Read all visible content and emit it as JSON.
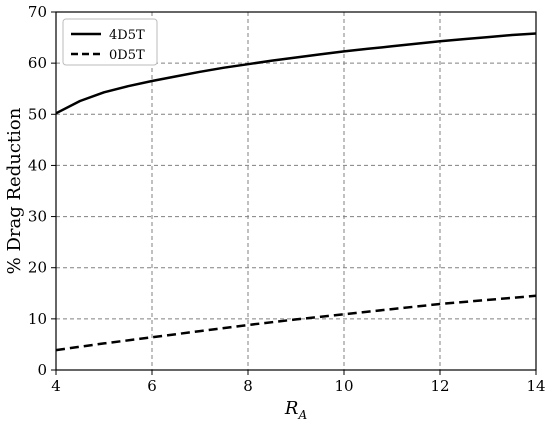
{
  "chart_data": {
    "type": "line",
    "title": "",
    "xlabel": "R",
    "xlabel_subscript": "A",
    "ylabel": "% Drag Reduction",
    "xlim": [
      4,
      14
    ],
    "ylim": [
      0,
      70
    ],
    "xticks": [
      4,
      6,
      8,
      10,
      12,
      14
    ],
    "yticks": [
      0,
      10,
      20,
      30,
      40,
      50,
      60,
      70
    ],
    "grid": true,
    "legend_position": "top-left",
    "series": [
      {
        "name": "4D5T",
        "style": "solid",
        "color": "#000000",
        "x": [
          4,
          4.5,
          5,
          5.5,
          6,
          6.5,
          7,
          7.5,
          8,
          8.5,
          9,
          9.5,
          10,
          10.5,
          11,
          11.5,
          12,
          12.5,
          13,
          13.5,
          14
        ],
        "y": [
          50.2,
          52.6,
          54.3,
          55.5,
          56.5,
          57.4,
          58.3,
          59.1,
          59.8,
          60.5,
          61.1,
          61.7,
          62.3,
          62.8,
          63.3,
          63.8,
          64.3,
          64.7,
          65.1,
          65.5,
          65.8
        ]
      },
      {
        "name": "0D5T",
        "style": "dashed",
        "color": "#000000",
        "x": [
          4,
          5,
          6,
          7,
          8,
          9,
          10,
          11,
          12,
          13,
          14
        ],
        "y": [
          3.9,
          5.2,
          6.4,
          7.6,
          8.8,
          9.9,
          10.9,
          11.9,
          12.9,
          13.7,
          14.5
        ]
      }
    ]
  }
}
